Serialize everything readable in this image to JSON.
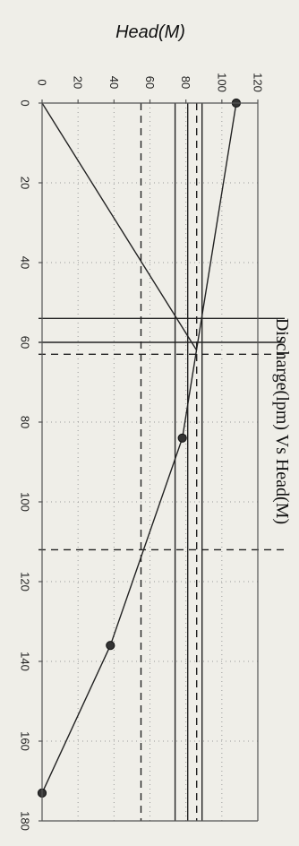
{
  "chart_data": {
    "type": "line",
    "title": "Discharge(lpm) Vs Head(M)",
    "xlabel": "",
    "ylabel": "Head(M)",
    "x_ticks": [
      0,
      20,
      40,
      60,
      80,
      100,
      120,
      140,
      160,
      180
    ],
    "y_ticks": [
      0,
      20,
      40,
      60,
      80,
      100,
      120
    ],
    "xlim": [
      0,
      180
    ],
    "ylim": [
      0,
      120
    ],
    "grid": true,
    "series": [
      {
        "style": "solid-with-markers",
        "points": [
          [
            0,
            108
          ],
          [
            84,
            78
          ],
          [
            136,
            38
          ],
          [
            173,
            0
          ]
        ]
      },
      {
        "style": "solid",
        "points": [
          [
            0,
            0
          ],
          [
            62,
            86
          ]
        ]
      },
      {
        "style": "solid-thick",
        "points": [
          [
            0,
            89
          ],
          [
            180,
            89
          ]
        ]
      },
      {
        "style": "solid",
        "points": [
          [
            0,
            81
          ],
          [
            180,
            81
          ]
        ]
      },
      {
        "style": "solid",
        "points": [
          [
            0,
            74
          ],
          [
            180,
            74
          ]
        ]
      },
      {
        "style": "dashed",
        "points": [
          [
            0,
            86
          ],
          [
            180,
            86
          ]
        ]
      },
      {
        "style": "dashed",
        "points": [
          [
            0,
            55
          ],
          [
            180,
            55
          ]
        ]
      },
      {
        "style": "solid-full-height",
        "points": [
          [
            54,
            0
          ],
          [
            54,
            120
          ]
        ]
      },
      {
        "style": "solid-full-height",
        "points": [
          [
            60,
            0
          ],
          [
            60,
            120
          ]
        ]
      },
      {
        "style": "dashed-full-height",
        "points": [
          [
            63,
            0
          ],
          [
            63,
            120
          ]
        ]
      },
      {
        "style": "dashed-full-height",
        "points": [
          [
            112,
            0
          ],
          [
            112,
            120
          ]
        ]
      }
    ]
  }
}
